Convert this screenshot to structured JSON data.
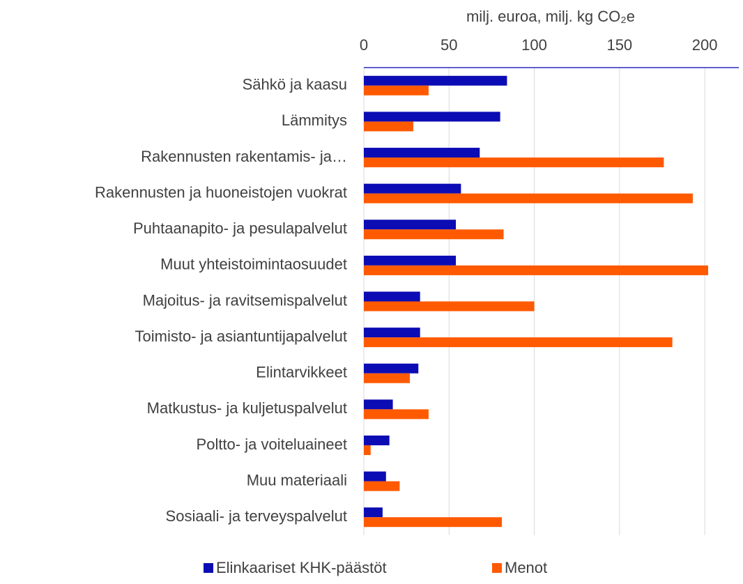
{
  "chart_data": {
    "type": "hbar",
    "xlabel": "milj. euroa, milj. kg CO₂e",
    "categories": [
      "Sähkö ja kaasu",
      "Lämmitys",
      "Rakennusten rakentamis- ja…",
      "Rakennusten ja huoneistojen vuokrat",
      "Puhtaanapito- ja pesulapalvelut",
      "Muut yhteistoimintaosuudet",
      "Majoitus- ja ravitsemispalvelut",
      "Toimisto- ja asiantuntijapalvelut",
      "Elintarvikkeet",
      "Matkustus- ja kuljetuspalvelut",
      "Poltto- ja voiteluaineet",
      "Muu materiaali",
      "Sosiaali- ja terveyspalvelut"
    ],
    "series": [
      {
        "name": "Elinkaariset KHK-päästöt",
        "color": "#0c0cb4",
        "values": [
          84,
          80,
          68,
          57,
          54,
          54,
          33,
          33,
          32,
          17,
          15,
          13,
          11
        ]
      },
      {
        "name": "Menot",
        "color": "#ff5a00",
        "values": [
          38,
          29,
          176,
          193,
          82,
          202,
          100,
          181,
          27,
          38,
          4,
          21,
          81
        ]
      }
    ],
    "xlim": [
      0,
      220
    ],
    "xticks": [
      0,
      50,
      100,
      150,
      200
    ],
    "grid": true,
    "legend": "bottom"
  }
}
